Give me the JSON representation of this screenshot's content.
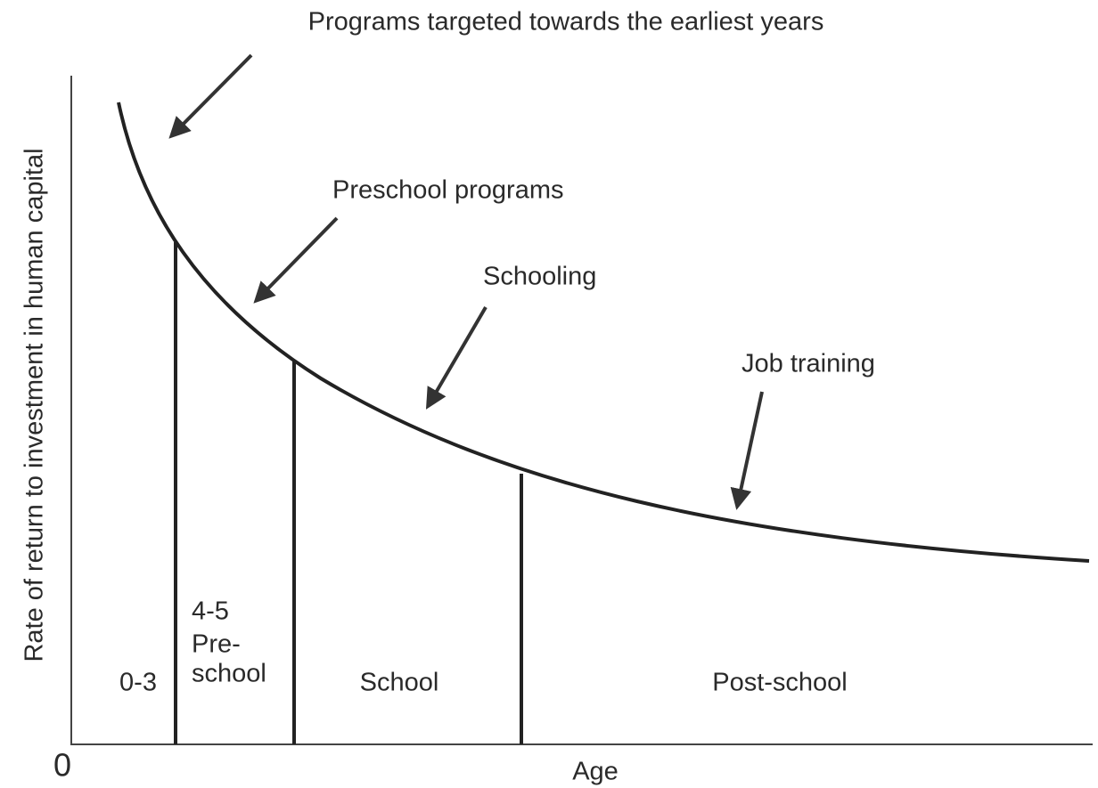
{
  "title": "Programs targeted towards the earliest years",
  "annotations": [
    "Preschool programs",
    "Schooling",
    "Job training"
  ],
  "y_axis_label": "Rate of return to investment in human capital",
  "x_axis_label": "Age",
  "origin_label": "0",
  "segments": [
    {
      "lines": [
        "0-3"
      ]
    },
    {
      "lines": [
        "4-5",
        "Pre-",
        "school"
      ]
    },
    {
      "lines": [
        "School"
      ]
    },
    {
      "lines": [
        "Post-school"
      ]
    }
  ]
}
